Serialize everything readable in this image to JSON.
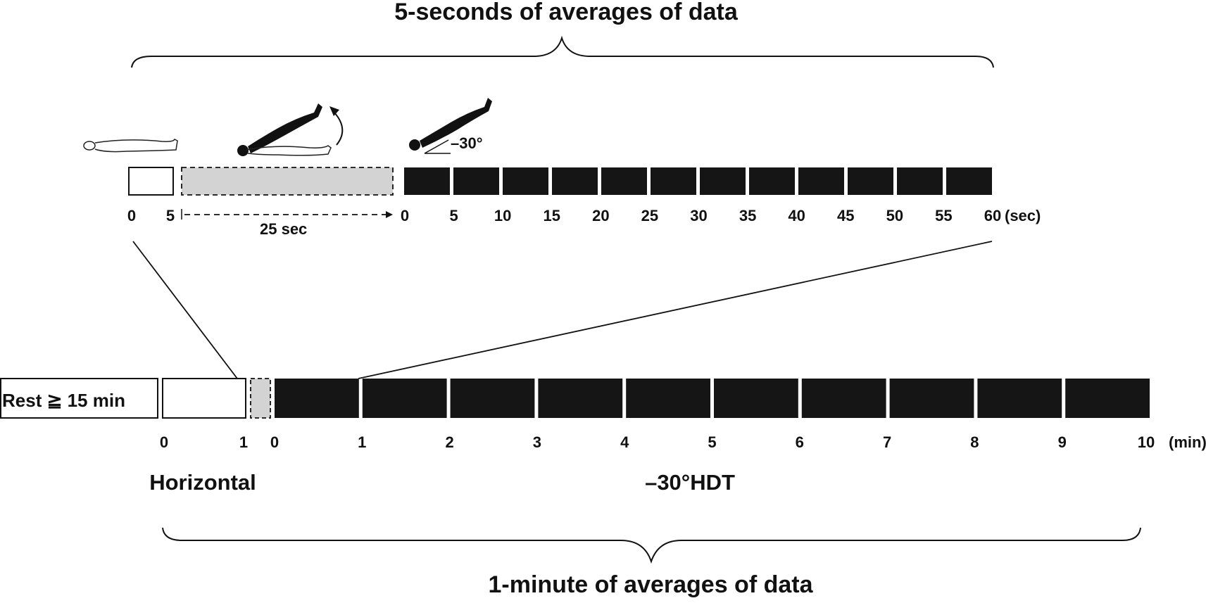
{
  "top_title": "5-seconds of averages of data",
  "bottom_title": "1-minute of averages of data",
  "top_axis": {
    "baseline_ticks": [
      "0",
      "5"
    ],
    "transition_label": "25 sec",
    "tilt_ticks": [
      "0",
      "5",
      "10",
      "15",
      "20",
      "25",
      "30",
      "35",
      "40",
      "45",
      "50",
      "55",
      "60"
    ],
    "unit": "(sec)",
    "angle_label": "–30°",
    "segments": {
      "baseline_sec": 5,
      "transition_sec": 25,
      "tilt_sec": 60,
      "tilt_interval_sec": 5
    }
  },
  "bottom_axis": {
    "rest_label": "Rest ≧ 15 min",
    "baseline_ticks": [
      "0",
      "1"
    ],
    "tilt_ticks": [
      "0",
      "1",
      "2",
      "3",
      "4",
      "5",
      "6",
      "7",
      "8",
      "9",
      "10"
    ],
    "unit": "(min)",
    "segments": {
      "baseline_min": 1,
      "tilt_min": 10,
      "tilt_interval_min": 1
    }
  },
  "phases": {
    "horizontal": "Horizontal",
    "hdt": "–30°HDT"
  },
  "colors": {
    "ink": "#111111",
    "tilt_fill": "#151515",
    "transition_fill": "#d3d3d3",
    "baseline_fill": "#ffffff"
  },
  "icons": [
    "person-supine-outline-icon",
    "person-tilting-silhouette-icon",
    "rotation-arrow-icon",
    "person-tilted-silhouette-icon"
  ]
}
